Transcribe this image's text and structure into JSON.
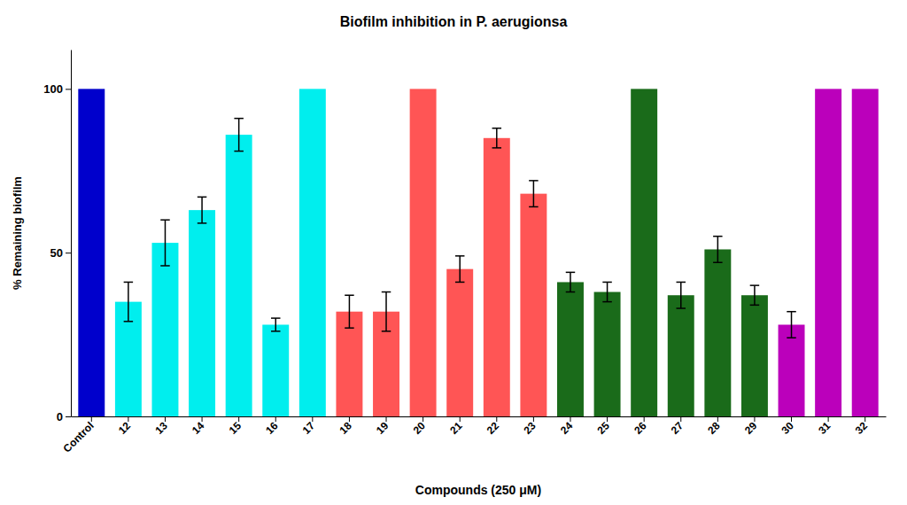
{
  "chart_data": {
    "type": "bar",
    "title": "Biofilm inhibition in P. aerugionsa",
    "xlabel": "Compounds (250 μM)",
    "ylabel": "% Remaining biofilm",
    "categories": [
      "Control",
      "12",
      "13",
      "14",
      "15",
      "16",
      "17",
      "18",
      "19",
      "20",
      "21",
      "22",
      "23",
      "24",
      "25",
      "26",
      "27",
      "28",
      "29",
      "30",
      "31",
      "32"
    ],
    "values": [
      100,
      35,
      53,
      63,
      86,
      28,
      100,
      32,
      32,
      100,
      45,
      85,
      68,
      41,
      38,
      100,
      37,
      51,
      37,
      28,
      100,
      100
    ],
    "errors": [
      0,
      6,
      7,
      4,
      5,
      2,
      0,
      5,
      6,
      0,
      4,
      3,
      4,
      3,
      3,
      0,
      4,
      4,
      3,
      4,
      0,
      0
    ],
    "colors": [
      "#0000CC",
      "#00EEEE",
      "#00EEEE",
      "#00EEEE",
      "#00EEEE",
      "#00EEEE",
      "#00EEEE",
      "#FF5555",
      "#FF5555",
      "#FF5555",
      "#FF5555",
      "#FF5555",
      "#FF5555",
      "#1A6B1A",
      "#1A6B1A",
      "#1A6B1A",
      "#1A6B1A",
      "#1A6B1A",
      "#1A6B1A",
      "#BB00BB",
      "#BB00BB",
      "#BB00BB"
    ],
    "ylim": [
      0,
      112
    ],
    "yticks": [
      0,
      50,
      100
    ],
    "grid": false
  }
}
